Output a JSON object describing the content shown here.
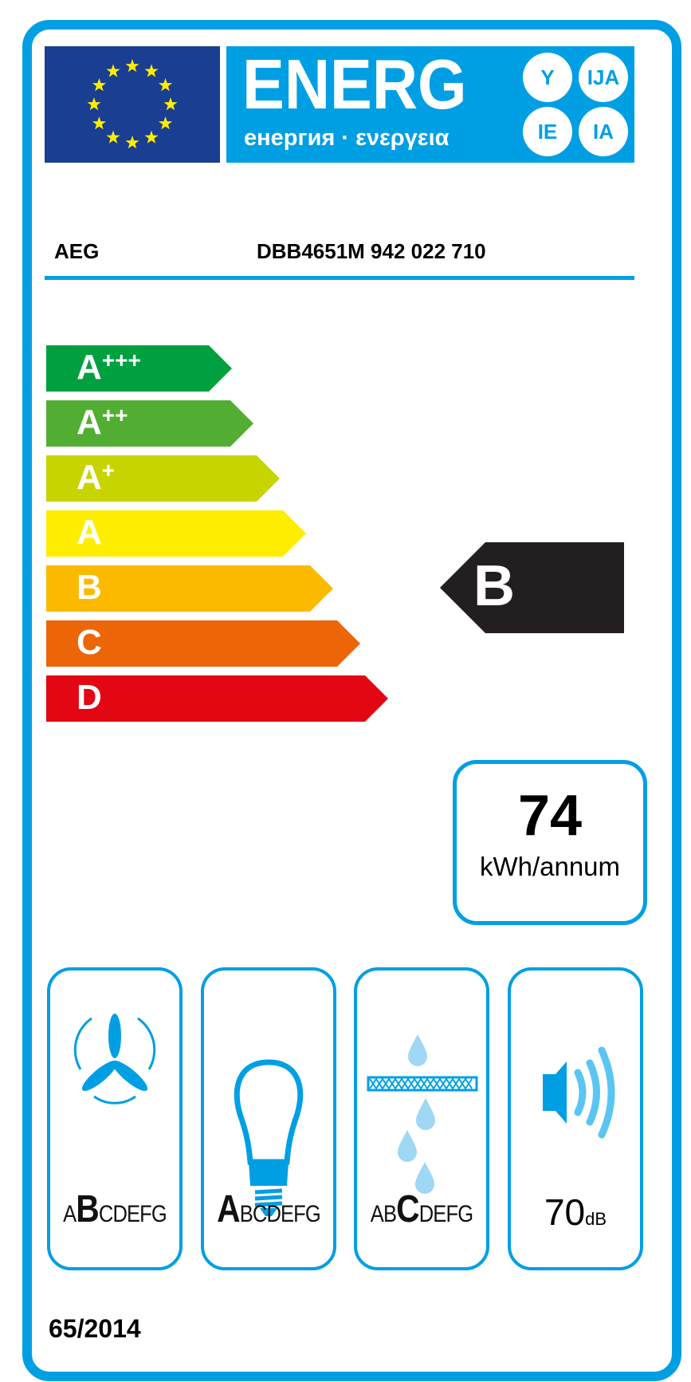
{
  "header": {
    "energy_title": "ENERG",
    "subtitle": "енергия · ενεργεια",
    "suffixes": [
      "Y",
      "IJA",
      "IE",
      "IA"
    ]
  },
  "supplier": "AEG",
  "model": "DBB4651M  942 022 710",
  "scale": [
    {
      "label": "A",
      "sup": "+++",
      "color": "#00a040"
    },
    {
      "label": "A",
      "sup": "++",
      "color": "#52ae32"
    },
    {
      "label": "A",
      "sup": "+",
      "color": "#c8d400"
    },
    {
      "label": "A",
      "sup": "",
      "color": "#ffed00"
    },
    {
      "label": "B",
      "sup": "",
      "color": "#fbba00"
    },
    {
      "label": "C",
      "sup": "",
      "color": "#ec6608"
    },
    {
      "label": "D",
      "sup": "",
      "color": "#e30613"
    }
  ],
  "energy_class": "B",
  "consumption": {
    "value": "74",
    "unit": "kWh/annum"
  },
  "ratings": [
    {
      "icon": "fan-icon",
      "before": "A",
      "class": "B",
      "after": "CDEFG"
    },
    {
      "icon": "light-bulb-icon",
      "before": "",
      "class": "A",
      "after": "BCDEFG"
    },
    {
      "icon": "grease-filter-icon",
      "before": "AB",
      "class": "C",
      "after": "DEFG"
    }
  ],
  "noise": {
    "value": "70",
    "unit": "dB"
  },
  "regulation": "65/2014",
  "colors": {
    "blue": "#009fe3",
    "flag": "#1a3e91",
    "star": "#ffed00",
    "arrow": "#231f20"
  }
}
